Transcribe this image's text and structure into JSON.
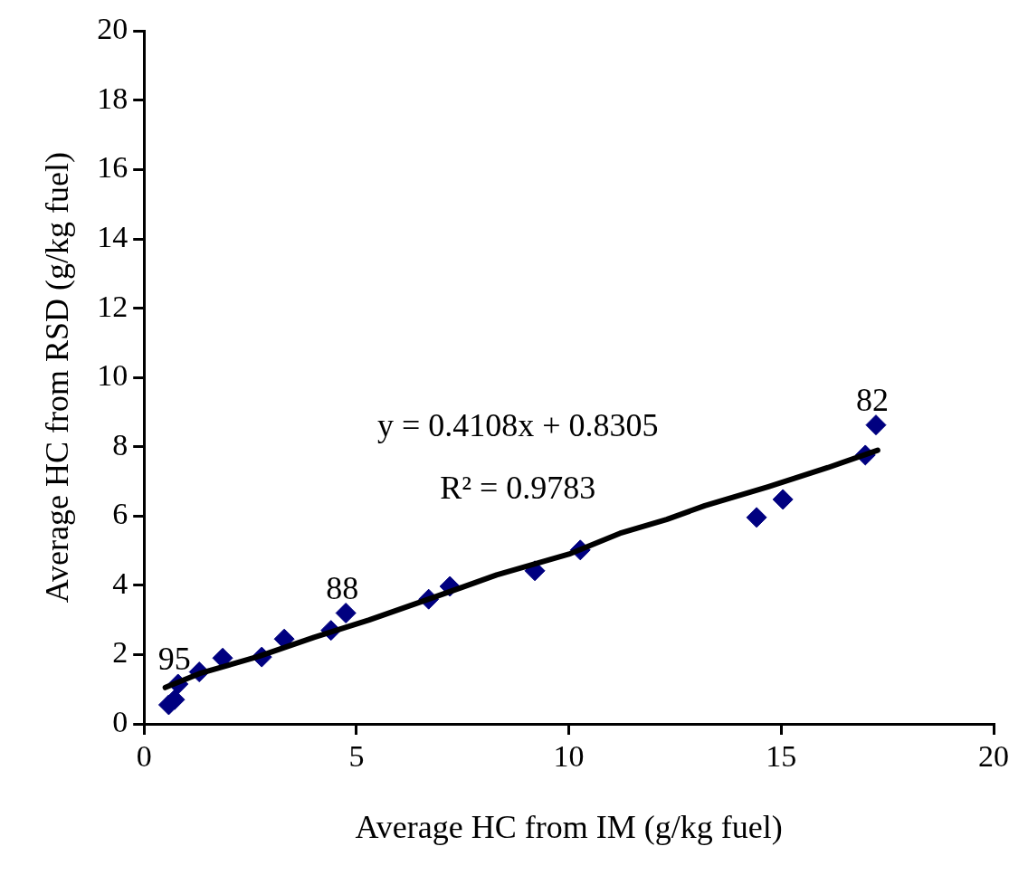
{
  "chart_data": {
    "type": "scatter",
    "xlabel": "Average HC from IM (g/kg fuel)",
    "ylabel": "Average HC from RSD (g/kg fuel)",
    "xlim": [
      0,
      20
    ],
    "xticks": [
      0,
      5,
      10,
      15,
      20
    ],
    "ylim": [
      0,
      20
    ],
    "yticks": [
      0,
      2,
      4,
      6,
      8,
      10,
      12,
      14,
      16,
      18,
      20
    ],
    "grid": false,
    "legend": false,
    "marker": "diamond",
    "series": [
      {
        "color": "#000080",
        "x": [
          0.58,
          0.72,
          0.8,
          1.3,
          1.85,
          2.77,
          3.3,
          4.4,
          4.75,
          6.7,
          7.2,
          9.2,
          10.27,
          14.42,
          15.04,
          16.98,
          17.23
        ],
        "values": [
          0.55,
          0.7,
          1.15,
          1.5,
          1.9,
          1.93,
          2.45,
          2.7,
          3.2,
          3.6,
          3.97,
          4.42,
          5.02,
          5.96,
          6.48,
          7.76,
          8.63
        ]
      },
      {
        "type": "line",
        "color": "#000000",
        "marker": "none",
        "line_style": "solid",
        "x": [
          0.5,
          1.3,
          2.7,
          4,
          5.3,
          6.7,
          8.3,
          10,
          11.2,
          12.3,
          13.2,
          14.7,
          16.1,
          17.27
        ],
        "values": [
          1.05,
          1.45,
          1.95,
          2.5,
          3.0,
          3.6,
          4.3,
          4.9,
          5.5,
          5.9,
          6.3,
          6.85,
          7.4,
          7.9
        ]
      }
    ],
    "annotations": [
      "y = 0.4108x + 0.8305",
      "R² = 0.9783",
      {
        "text": "95",
        "x": 0.8,
        "y": 1.15
      },
      {
        "text": "88",
        "x": 4.75,
        "y": 3.2
      },
      {
        "text": "82",
        "x": 17.23,
        "y": 8.63
      }
    ]
  }
}
